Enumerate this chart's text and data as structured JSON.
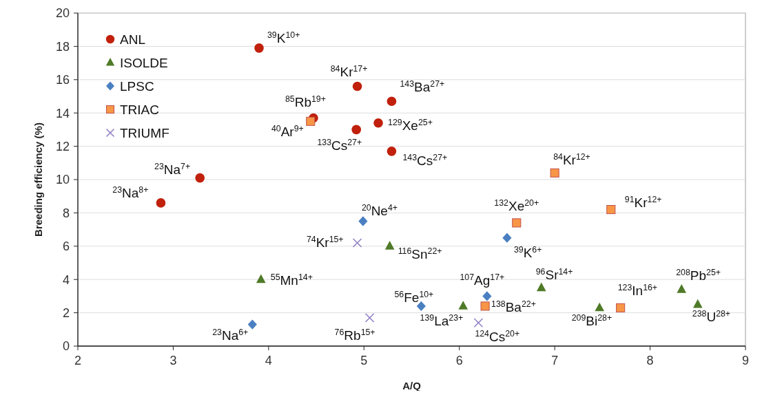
{
  "chart_data": {
    "type": "scatter",
    "xlabel": "A/Q",
    "ylabel": "Breeding efficiency (%)",
    "xlim": [
      2,
      9
    ],
    "xticks": [
      2,
      3,
      4,
      5,
      6,
      7,
      8,
      9
    ],
    "ylim": [
      0,
      20
    ],
    "yticks": [
      0,
      2,
      4,
      6,
      8,
      10,
      12,
      14,
      16,
      18,
      20
    ],
    "grid": "y",
    "legend": "top left",
    "series": [
      {
        "name": "ANL",
        "color": "#c0200c",
        "marker": "circle",
        "x": [
          3.9,
          4.93,
          4.47,
          5.29,
          4.92,
          5.15,
          5.29,
          3.28,
          2.87
        ],
        "values": [
          17.9,
          15.6,
          13.7,
          14.7,
          13.0,
          13.4,
          11.7,
          10.1,
          8.6
        ]
      },
      {
        "name": "ISOLDE",
        "color": "#4f7a28",
        "marker": "triangle",
        "x": [
          3.92,
          5.27,
          6.04,
          6.86,
          7.47,
          8.33,
          8.5
        ],
        "values": [
          4.0,
          6.0,
          2.4,
          3.5,
          2.3,
          3.4,
          2.5
        ]
      },
      {
        "name": "LPSC",
        "color": "#4a7fc1",
        "marker": "diamond",
        "x": [
          4.99,
          3.83,
          5.6,
          6.29,
          6.5
        ],
        "values": [
          7.5,
          1.3,
          2.4,
          3.0,
          6.5
        ]
      },
      {
        "name": "TRIAC",
        "color": "#f79646",
        "marker": "square",
        "x": [
          4.44,
          6.27,
          6.6,
          7.0,
          7.59,
          7.69
        ],
        "values": [
          13.5,
          2.4,
          7.4,
          10.4,
          8.2,
          2.3
        ]
      },
      {
        "name": "TRIUMF",
        "color": "#8e7cc3",
        "marker": "cross",
        "x": [
          4.93,
          5.06,
          6.2
        ],
        "values": [
          6.2,
          1.7,
          1.4
        ]
      }
    ],
    "annotations": [
      {
        "text": "$^{39}$K$^{10+}$",
        "x": 3.9,
        "y": 17.9
      },
      {
        "text": "$^{84}$Kr$^{17+}$",
        "x": 4.93,
        "y": 15.6
      },
      {
        "text": "$^{85}$Rb$^{19+}$",
        "x": 4.47,
        "y": 13.7
      },
      {
        "text": "$^{143}$Ba$^{27+}$",
        "x": 5.29,
        "y": 14.7
      },
      {
        "text": "$^{40}$Ar$^{9+}$",
        "x": 4.44,
        "y": 13.5
      },
      {
        "text": "$^{133}$Cs$^{27+}$",
        "x": 4.92,
        "y": 13.0
      },
      {
        "text": "$^{129}$Xe$^{25+}$",
        "x": 5.15,
        "y": 13.4
      },
      {
        "text": "$^{143}$Cs$^{27+}$",
        "x": 5.29,
        "y": 11.7
      },
      {
        "text": "$^{23}$Na$^{7+}$",
        "x": 3.28,
        "y": 10.1
      },
      {
        "text": "$^{23}$Na$^{8+}$",
        "x": 2.87,
        "y": 8.6
      },
      {
        "text": "$^{20}$Ne$^{4+}$",
        "x": 4.99,
        "y": 7.5
      },
      {
        "text": "$^{74}$Kr$^{15+}$",
        "x": 4.93,
        "y": 6.2
      },
      {
        "text": "$^{116}$Sn$^{22+}$",
        "x": 5.27,
        "y": 6.0
      },
      {
        "text": "$^{55}$Mn$^{14+}$",
        "x": 3.92,
        "y": 4.0
      },
      {
        "text": "$^{23}$Na$^{6+}$",
        "x": 3.83,
        "y": 1.3
      },
      {
        "text": "$^{76}$Rb$^{15+}$",
        "x": 5.06,
        "y": 1.7
      },
      {
        "text": "$^{56}$Fe$^{10+}$",
        "x": 5.6,
        "y": 2.4
      },
      {
        "text": "$^{107}$Ag$^{17+}$",
        "x": 6.29,
        "y": 3.0
      },
      {
        "text": "$^{139}$La$^{23+}$",
        "x": 6.04,
        "y": 2.4
      },
      {
        "text": "$^{138}$Ba$^{22+}$",
        "x": 6.27,
        "y": 2.4
      },
      {
        "text": "$^{124}$Cs$^{20+}$",
        "x": 6.2,
        "y": 1.4
      },
      {
        "text": "$^{132}$Xe$^{20+}$",
        "x": 6.6,
        "y": 7.4
      },
      {
        "text": "$^{39}$K$^{6+}$",
        "x": 6.5,
        "y": 6.5
      },
      {
        "text": "$^{84}$Kr$^{12+}$",
        "x": 7.0,
        "y": 10.4
      },
      {
        "text": "$^{91}$Kr$^{12+}$",
        "x": 7.59,
        "y": 8.2
      },
      {
        "text": "$^{96}$Sr$^{14+}$",
        "x": 6.86,
        "y": 3.5
      },
      {
        "text": "$^{209}$Bi$^{28+}$",
        "x": 7.47,
        "y": 2.3
      },
      {
        "text": "$^{123}$In$^{16+}$",
        "x": 7.69,
        "y": 2.3
      },
      {
        "text": "$^{208}$Pb$^{25+}$",
        "x": 8.33,
        "y": 3.4
      },
      {
        "text": "$^{238}$U$^{28+}$",
        "x": 8.5,
        "y": 2.5
      }
    ]
  }
}
